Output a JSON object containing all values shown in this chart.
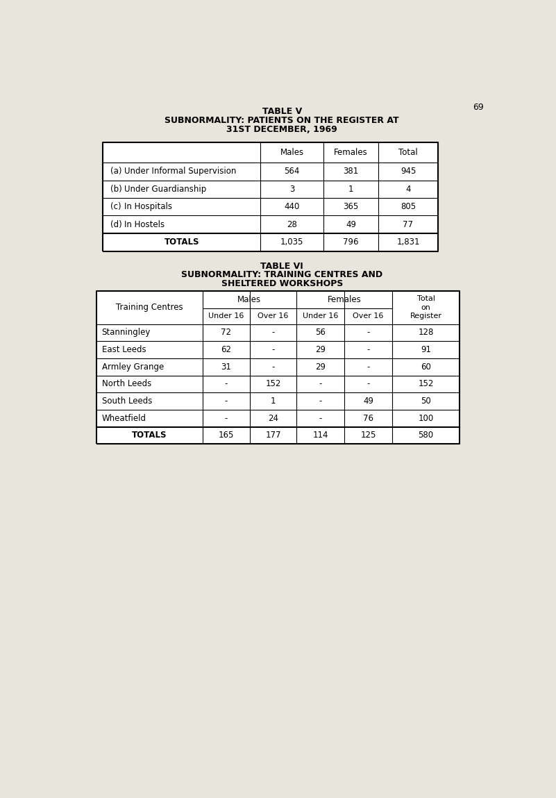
{
  "page_bg": "#e8e5dc",
  "table_bg": "#ffffff",
  "page_num": "69",
  "table5_title1": "TABLE V",
  "table5_title2": "SUBNORMALITY: PATIENTS ON THE REGISTER AT",
  "table5_title3": "31ST DECEMBER, 1969",
  "table5_headers": [
    "Males",
    "Females",
    "Total"
  ],
  "table5_rows": [
    [
      "(a)",
      "Under Informal Supervision",
      "564",
      "381",
      "945"
    ],
    [
      "(b)",
      "Under Guardianship",
      "3",
      "1",
      "4"
    ],
    [
      "(c)",
      "In Hospitals",
      "440",
      "365",
      "805"
    ],
    [
      "(d)",
      "In Hostels",
      "28",
      "49",
      "77"
    ]
  ],
  "table5_totals": [
    "TOTALS",
    "1,035",
    "796",
    "1,831"
  ],
  "table6_title1": "TABLE VI",
  "table6_title2": "SUBNORMALITY: TRAINING CENTRES AND",
  "table6_title3": "SHELTERED WORKSHOPS",
  "table6_sub_headers": [
    "Under 16",
    "Over 16",
    "Under 16",
    "Over 16"
  ],
  "table6_rows": [
    [
      "Stanningley",
      "72",
      "-",
      "56",
      "-",
      "128"
    ],
    [
      "East Leeds",
      "62",
      "-",
      "29",
      "-",
      "91"
    ],
    [
      "Armley Grange",
      "31",
      "-",
      "29",
      "-",
      "60"
    ],
    [
      "North Leeds",
      "-",
      "152",
      "-",
      "-",
      "152"
    ],
    [
      "South Leeds",
      "-",
      "1",
      "-",
      "49",
      "50"
    ],
    [
      "Wheatfield",
      "-",
      "24",
      "-",
      "76",
      "100"
    ]
  ],
  "table6_totals": [
    "TOTALS",
    "165",
    "177",
    "114",
    "125",
    "580"
  ],
  "title_fontsize": 9,
  "header_fontsize": 8.5,
  "cell_fontsize": 8.5
}
